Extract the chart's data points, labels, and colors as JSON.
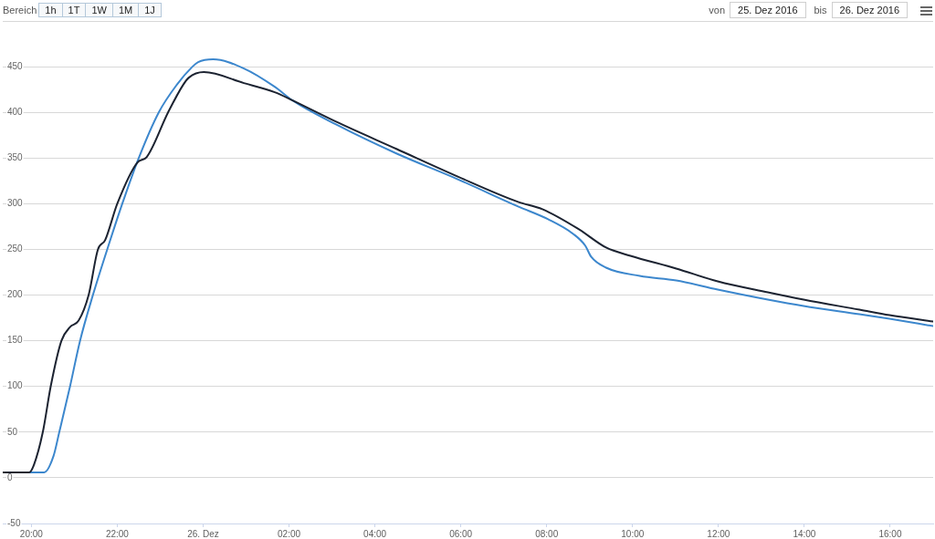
{
  "chart_data": {
    "type": "line",
    "annotations": [
      "Bereich",
      "1h",
      "1T",
      "1W",
      "1M",
      "1J",
      "von",
      "25. Dez 2016",
      "bis",
      "26. Dez 2016"
    ],
    "xlim": [
      "2016-12-25T19:20",
      "2016-12-26T17:00"
    ],
    "xticks": [
      {
        "value": "2016-12-25T20:00",
        "label": "20:00"
      },
      {
        "value": "2016-12-25T22:00",
        "label": "22:00"
      },
      {
        "value": "2016-12-26T00:00",
        "label": "26. Dez"
      },
      {
        "value": "2016-12-26T02:00",
        "label": "02:00"
      },
      {
        "value": "2016-12-26T04:00",
        "label": "04:00"
      },
      {
        "value": "2016-12-26T06:00",
        "label": "06:00"
      },
      {
        "value": "2016-12-26T08:00",
        "label": "08:00"
      },
      {
        "value": "2016-12-26T10:00",
        "label": "10:00"
      },
      {
        "value": "2016-12-26T12:00",
        "label": "12:00"
      },
      {
        "value": "2016-12-26T14:00",
        "label": "14:00"
      },
      {
        "value": "2016-12-26T16:00",
        "label": "16:00"
      }
    ],
    "ylim": [
      -50,
      500
    ],
    "yticks": [
      -50,
      0,
      50,
      100,
      150,
      200,
      250,
      300,
      350,
      400,
      450,
      {
        "value": 500,
        "label": null
      }
    ],
    "grid": "y",
    "marker": "none",
    "line_style": "solid",
    "series": [
      {
        "color": "#1c2331",
        "x": [
          "2016-12-25T19:20",
          "2016-12-25T19:57",
          "2016-12-25T20:03",
          "2016-12-25T20:16",
          "2016-12-25T20:27",
          "2016-12-25T20:42",
          "2016-12-25T20:54",
          "2016-12-25T21:06",
          "2016-12-25T21:20",
          "2016-12-25T21:33",
          "2016-12-25T21:43",
          "2016-12-25T22:00",
          "2016-12-25T22:28",
          "2016-12-25T22:41",
          "2016-12-25T23:11",
          "2016-12-25T23:32",
          "2016-12-25T23:40",
          "2016-12-26T00:01",
          "2016-12-26T00:57",
          "2016-12-26T01:40",
          "2016-12-26T02:05",
          "2016-12-26T03:05",
          "2016-12-26T04:30",
          "2016-12-26T05:55",
          "2016-12-26T07:20",
          "2016-12-26T07:54",
          "2016-12-26T08:45",
          "2016-12-26T09:23",
          "2016-12-26T09:57",
          "2016-12-26T11:01",
          "2016-12-26T11:59",
          "2016-12-26T13:09",
          "2016-12-26T13:59",
          "2016-12-26T15:17",
          "2016-12-26T15:59",
          "2016-12-26T17:00"
        ],
        "values": [
          6,
          6,
          13,
          50,
          100,
          150,
          165,
          172,
          200,
          250,
          260,
          300,
          345,
          351,
          400,
          430,
          438,
          444,
          432,
          422,
          413,
          390,
          360,
          330,
          302,
          294,
          272,
          252,
          243,
          229,
          215,
          203,
          195,
          184,
          178,
          171
        ]
      },
      {
        "color": "#3c87cd",
        "x": [
          "2016-12-25T19:20",
          "2016-12-25T20:18",
          "2016-12-25T20:31",
          "2016-12-25T20:39",
          "2016-12-25T20:54",
          "2016-12-25T21:08",
          "2016-12-25T21:26",
          "2016-12-25T21:46",
          "2016-12-25T22:07",
          "2016-12-25T22:30",
          "2016-12-25T22:58",
          "2016-12-25T23:23",
          "2016-12-25T23:45",
          "2016-12-25T23:53",
          "2016-12-26T00:14",
          "2016-12-26T00:57",
          "2016-12-26T01:40",
          "2016-12-26T02:05",
          "2016-12-26T03:05",
          "2016-12-26T04:30",
          "2016-12-26T05:55",
          "2016-12-26T07:20",
          "2016-12-26T08:02",
          "2016-12-26T08:37",
          "2016-12-26T08:54",
          "2016-12-26T09:02",
          "2016-12-26T09:23",
          "2016-12-26T10:10",
          "2016-12-26T11:01",
          "2016-12-26T11:59",
          "2016-12-26T13:09",
          "2016-12-26T13:59",
          "2016-12-26T15:17",
          "2016-12-26T15:59",
          "2016-12-26T17:00"
        ],
        "values": [
          6,
          6,
          24,
          50,
          100,
          150,
          200,
          250,
          300,
          350,
          400,
          430,
          450,
          455,
          458,
          448,
          428,
          413,
          387,
          355,
          327,
          297,
          283,
          267,
          254,
          242,
          230,
          221,
          216,
          206,
          195,
          188,
          179,
          174,
          166
        ]
      }
    ]
  }
}
